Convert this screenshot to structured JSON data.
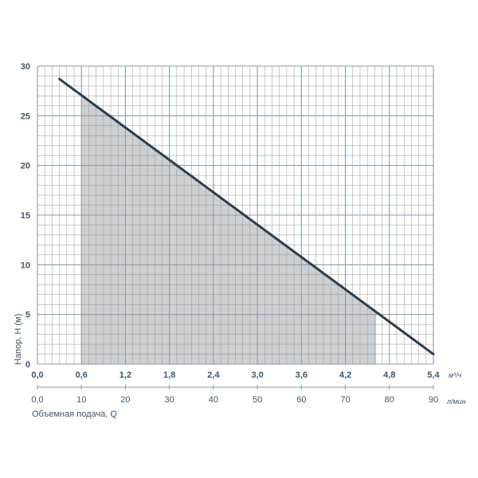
{
  "chart_data": {
    "type": "line",
    "ylabel": "Напор, Н (м)",
    "xlabel": "Объемная подача, Q",
    "x_unit": "м³/ч",
    "x2_unit": "л/мин",
    "xlim": [
      0,
      5.4
    ],
    "ylim": [
      0,
      30
    ],
    "x2lim": [
      0,
      90
    ],
    "x_ticks": [
      "0,0",
      "0,6",
      "1,2",
      "1,8",
      "2,4",
      "3,0",
      "3,6",
      "4,2",
      "4,8",
      "5,4"
    ],
    "x_tick_values": [
      0,
      0.6,
      1.2,
      1.8,
      2.4,
      3.0,
      3.6,
      4.2,
      4.8,
      5.4
    ],
    "x2_ticks": [
      "0,0",
      "10",
      "20",
      "30",
      "40",
      "50",
      "60",
      "70",
      "80",
      "90"
    ],
    "x2_tick_values": [
      0,
      10,
      20,
      30,
      40,
      50,
      60,
      70,
      80,
      90
    ],
    "y_ticks": [
      "0",
      "5",
      "10",
      "15",
      "20",
      "25",
      "30"
    ],
    "y_tick_values": [
      0,
      5,
      10,
      15,
      20,
      25,
      30
    ],
    "grid": true,
    "series": [
      {
        "x": [
          0.3,
          5.4
        ],
        "y": [
          28.7,
          1.0
        ]
      }
    ],
    "recommended_range": [
      0.6,
      4.62
    ],
    "colors": {
      "curve": "#2f3d49",
      "grid": "#8e99a3",
      "fill": "#cdd0d3",
      "text": "#455563"
    }
  }
}
